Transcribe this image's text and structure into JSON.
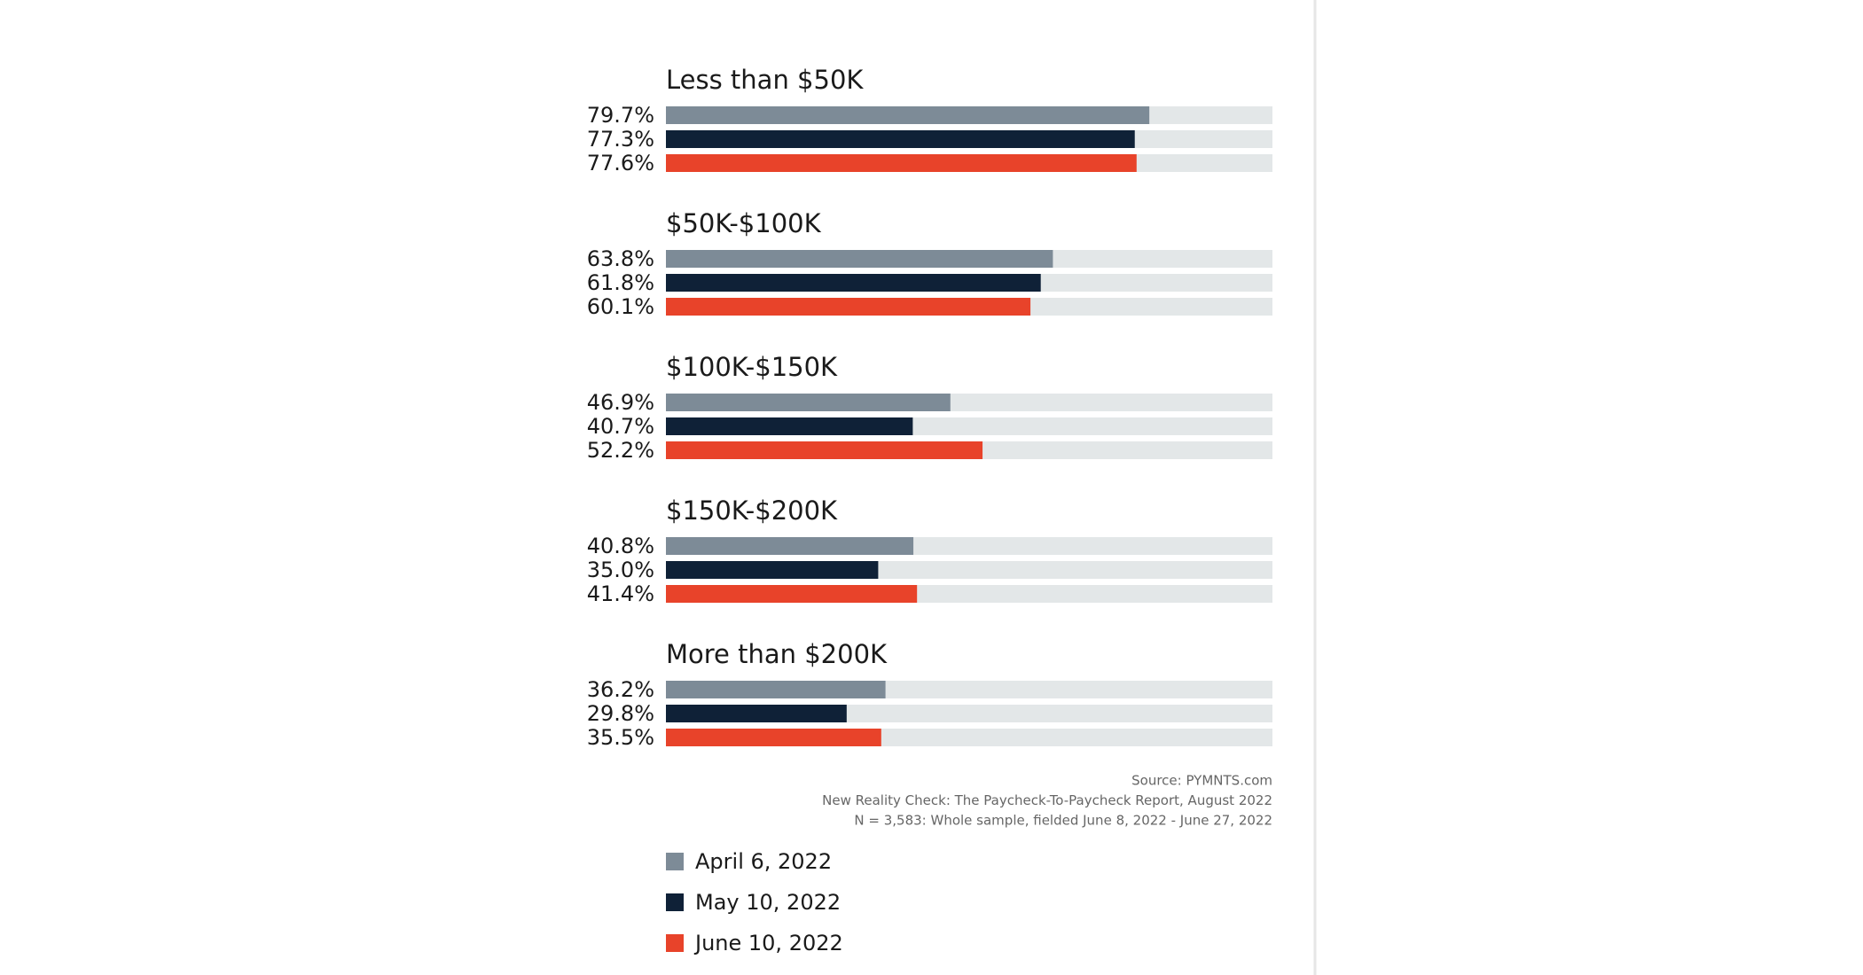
{
  "chart_data": {
    "type": "bar",
    "orientation": "horizontal",
    "categories": [
      "Less than $50K",
      "$50K-$100K",
      "$100K-$150K",
      "$150K-$200K",
      "More than $200K"
    ],
    "series": [
      {
        "name": "April 6, 2022",
        "color": "#7d8b97",
        "values": [
          79.7,
          63.8,
          46.9,
          40.8,
          36.2
        ],
        "value_labels": [
          "79.7%",
          "63.8%",
          "46.9%",
          "40.8%",
          "36.2%"
        ]
      },
      {
        "name": "May 10, 2022",
        "color": "#0f2137",
        "values": [
          77.3,
          61.8,
          40.7,
          35.0,
          29.8
        ],
        "value_labels": [
          "77.3%",
          "61.8%",
          "40.7%",
          "35.0%",
          "29.8%"
        ]
      },
      {
        "name": "June 10, 2022",
        "color": "#e8432a",
        "values": [
          77.6,
          60.1,
          52.2,
          41.4,
          35.5
        ],
        "value_labels": [
          "77.6%",
          "60.1%",
          "52.2%",
          "41.4%",
          "35.5%"
        ]
      }
    ],
    "xlim": [
      0,
      100
    ],
    "track_color": "#e3e7e8",
    "notes": [
      "Source: PYMNTS.com",
      "New Reality Check: The Paycheck-To-Paycheck Report, August 2022",
      "N = 3,583: Whole sample, fielded June 8, 2022 - June 27, 2022"
    ]
  }
}
